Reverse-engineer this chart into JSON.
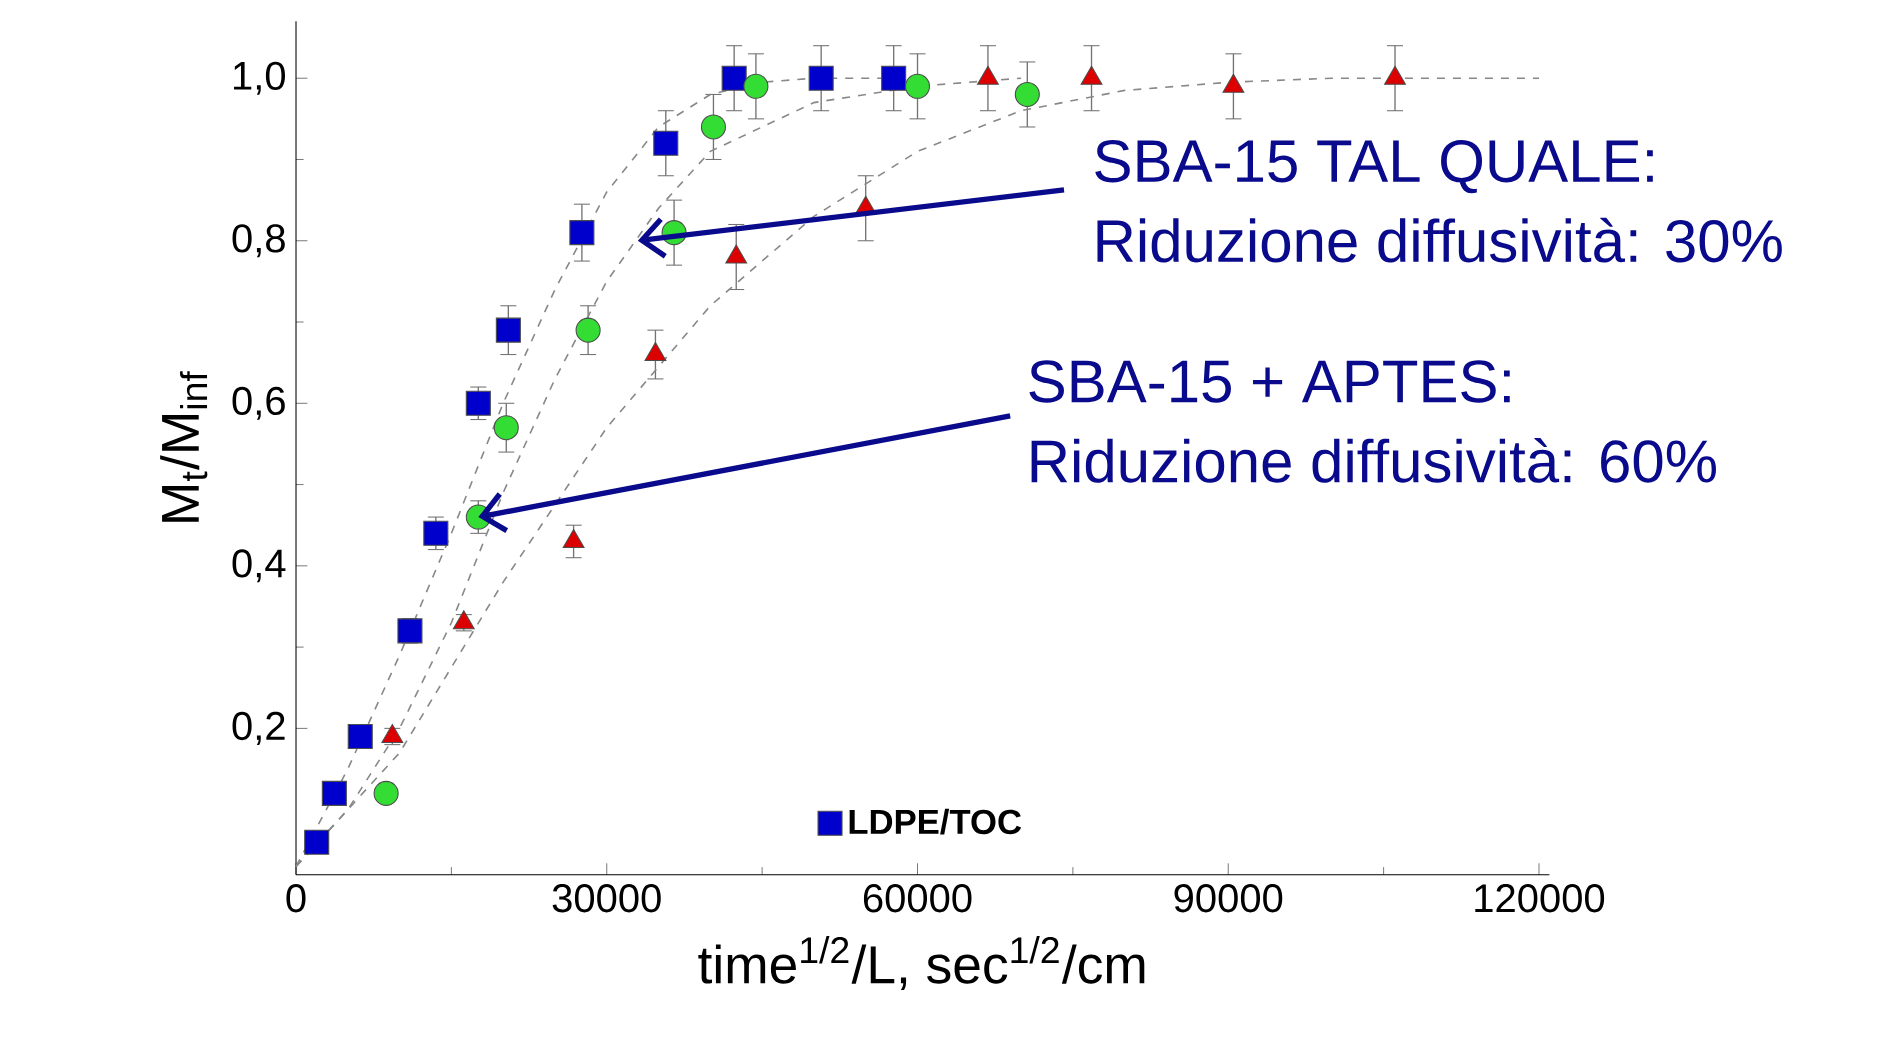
{
  "chart_data": {
    "type": "scatter",
    "xlabel": "time$^{1/2}$/L, sec$^{1/2}$/cm",
    "ylabel": "M$_{t}$/M$_{inf}$",
    "xlim": [
      0,
      121000
    ],
    "ylim": [
      0.02,
      1.07
    ],
    "xticks": [
      0,
      30000,
      60000,
      90000,
      120000
    ],
    "yticks": [
      {
        "value": 0.2,
        "label": "0,2"
      },
      {
        "value": 0.4,
        "label": "0,4"
      },
      {
        "value": 0.6,
        "label": "0,6"
      },
      {
        "value": 0.8,
        "label": "0,8"
      },
      {
        "value": 1.0,
        "label": "1,0"
      }
    ],
    "legend": "bottom",
    "series": [
      {
        "name": "LDPE/TOC",
        "marker": "square",
        "color": "#0000cc",
        "x": [
          2000,
          3700,
          6200,
          11000,
          13500,
          17600,
          20500,
          27600,
          35700,
          42300,
          50700,
          57700
        ],
        "values": [
          0.06,
          0.12,
          0.19,
          0.32,
          0.44,
          0.6,
          0.69,
          0.81,
          0.92,
          1.0,
          1.0,
          1.0
        ],
        "errors": [
          0.01,
          0.01,
          0.01,
          0.015,
          0.02,
          0.02,
          0.03,
          0.035,
          0.04,
          0.04,
          0.04,
          0.04
        ]
      },
      {
        "marker": "circle",
        "color": "#33dd33",
        "x": [
          8700,
          17600,
          20300,
          28200,
          36500,
          40300,
          44400,
          60000,
          70600
        ],
        "values": [
          0.12,
          0.46,
          0.57,
          0.69,
          0.81,
          0.94,
          0.99,
          0.99,
          0.98
        ],
        "errors": [
          0.01,
          0.02,
          0.03,
          0.03,
          0.04,
          0.04,
          0.04,
          0.04,
          0.04
        ]
      },
      {
        "marker": "triangle",
        "color": "#dd0000",
        "x": [
          9300,
          16200,
          26800,
          34700,
          42500,
          55000,
          66800,
          76800,
          90500,
          106100
        ],
        "values": [
          0.19,
          0.33,
          0.43,
          0.66,
          0.78,
          0.84,
          1.0,
          1.0,
          0.99,
          1.0
        ],
        "errors": [
          0.01,
          0.01,
          0.02,
          0.03,
          0.04,
          0.04,
          0.04,
          0.04,
          0.04,
          0.04
        ]
      },
      {
        "type": "line",
        "marker": "none",
        "line_style": "dashed",
        "color": "#888888",
        "x": [
          0,
          5000,
          10000,
          15000,
          20000,
          25000,
          30000,
          35000,
          40000,
          45000,
          50000,
          60000
        ],
        "values": [
          0.03,
          0.15,
          0.29,
          0.44,
          0.6,
          0.74,
          0.86,
          0.94,
          0.98,
          0.995,
          1.0,
          1.0
        ]
      },
      {
        "type": "line",
        "marker": "none",
        "line_style": "dashed",
        "color": "#888888",
        "x": [
          0,
          5000,
          10000,
          15000,
          20000,
          25000,
          30000,
          35000,
          40000,
          50000,
          60000,
          70000
        ],
        "values": [
          0.03,
          0.1,
          0.2,
          0.33,
          0.49,
          0.63,
          0.75,
          0.84,
          0.91,
          0.97,
          0.99,
          1.0
        ]
      },
      {
        "type": "line",
        "marker": "none",
        "line_style": "dashed",
        "color": "#888888",
        "x": [
          0,
          10000,
          20000,
          30000,
          40000,
          50000,
          60000,
          70000,
          80000,
          90000,
          100000,
          120000
        ],
        "values": [
          0.03,
          0.17,
          0.38,
          0.57,
          0.72,
          0.83,
          0.91,
          0.96,
          0.985,
          0.995,
          1.0,
          1.0
        ]
      }
    ],
    "annotations": [
      {
        "text": "SBA-15 TAL QUALE:",
        "x": 33000,
        "y": 0.8
      },
      "Riduzione diffusività: 30%",
      {
        "text": "SBA-15 + APTES:",
        "x": 17600,
        "y": 0.46
      },
      "Riduzione diffusività: 60%"
    ]
  }
}
